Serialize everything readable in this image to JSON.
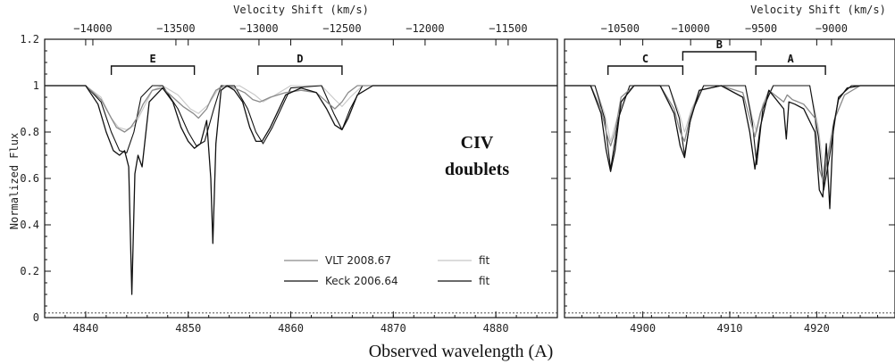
{
  "chart_data": {
    "type": "line",
    "description_text": {
      "top_axis_title": "Velocity Shift (km/s)",
      "y_axis_title": "Normalized Flux",
      "x_axis_title": "Observed wavelength (A)",
      "annotation": [
        "CIV",
        "doublets"
      ]
    },
    "panels": [
      {
        "xlim": [
          4836,
          4886
        ],
        "ylim": [
          0,
          1.2
        ],
        "x_ticks": [
          4840,
          4850,
          4860,
          4870,
          4880
        ],
        "y_ticks": [
          0,
          0.2,
          0.4,
          0.6,
          0.8,
          1,
          1.2
        ],
        "top_ticks": [
          -14000,
          -13500,
          -13000,
          -12500,
          -12000,
          -11500
        ],
        "top_tick_wavelengths": [
          4840.7,
          4848.8,
          4856.9,
          4865.0,
          4873.1,
          4881.2
        ],
        "components": [
          {
            "label": "E",
            "x_range": [
              4842.5,
              4850.6
            ]
          },
          {
            "label": "D",
            "x_range": [
              4856.8,
              4865.0
            ]
          }
        ],
        "series": [
          {
            "name": "VLT 2008.67",
            "color": "#8a8a8a",
            "x": [
              4836,
              4840,
              4841.5,
              4842.5,
              4843.0,
              4843.8,
              4844.4,
              4845.0,
              4845.6,
              4846.5,
              4847.5,
              4848.5,
              4849.5,
              4850.5,
              4851.0,
              4851.8,
              4852.2,
              4852.7,
              4853.5,
              4854.5,
              4855.5,
              4856.3,
              4857.0,
              4858.0,
              4859.5,
              4861.0,
              4862.5,
              4863.5,
              4864.3,
              4865.0,
              4865.6,
              4866.5,
              4868,
              4886
            ],
            "y": [
              1.0,
              1.0,
              0.94,
              0.86,
              0.82,
              0.8,
              0.82,
              0.86,
              0.92,
              0.98,
              0.99,
              0.95,
              0.91,
              0.88,
              0.86,
              0.9,
              0.94,
              0.98,
              1.0,
              0.99,
              0.97,
              0.94,
              0.93,
              0.95,
              0.97,
              0.98,
              0.97,
              0.93,
              0.9,
              0.93,
              0.97,
              1.0,
              1.0,
              1.0
            ]
          },
          {
            "name": "Keck 2006.64",
            "color": "#111111",
            "x": [
              4836,
              4840,
              4841.2,
              4842.0,
              4842.7,
              4843.3,
              4843.8,
              4844.2,
              4844.5,
              4844.8,
              4845.1,
              4845.5,
              4846.2,
              4847.5,
              4848.5,
              4849.3,
              4850.0,
              4850.6,
              4851.2,
              4851.8,
              4852.2,
              4852.4,
              4852.7,
              4853.2,
              4853.8,
              4854.5,
              4855.3,
              4856.0,
              4856.6,
              4857.2,
              4858.0,
              4859.5,
              4861.0,
              4862.5,
              4863.5,
              4864.3,
              4865.0,
              4865.6,
              4866.5,
              4868,
              4886
            ],
            "y": [
              1.0,
              1.0,
              0.92,
              0.8,
              0.72,
              0.7,
              0.72,
              0.65,
              0.1,
              0.62,
              0.7,
              0.65,
              0.93,
              0.99,
              0.93,
              0.82,
              0.76,
              0.73,
              0.75,
              0.85,
              0.6,
              0.32,
              0.75,
              0.98,
              1.0,
              0.98,
              0.93,
              0.82,
              0.76,
              0.76,
              0.82,
              0.96,
              0.99,
              0.97,
              0.9,
              0.83,
              0.81,
              0.86,
              0.96,
              1.0,
              1.0
            ]
          }
        ],
        "fits": [
          {
            "name": "fit",
            "color": "#c8c8c8",
            "x": [
              4836,
              4840,
              4841.5,
              4842.5,
              4843.2,
              4844.0,
              4844.8,
              4845.6,
              4846.5,
              4847.5,
              4849.0,
              4850.2,
              4851.0,
              4852.0,
              4853.0,
              4855.0,
              4856.5,
              4857.3,
              4858.5,
              4860,
              4863,
              4864.3,
              4865.0,
              4865.8,
              4867,
              4886
            ],
            "y": [
              1.0,
              1.0,
              0.95,
              0.86,
              0.82,
              0.81,
              0.83,
              0.9,
              0.98,
              1.0,
              0.96,
              0.9,
              0.88,
              0.92,
              0.99,
              1.0,
              0.96,
              0.93,
              0.96,
              1.0,
              1.0,
              0.94,
              0.91,
              0.95,
              1.0,
              1.0
            ]
          },
          {
            "name": "fit",
            "color": "#111111",
            "x": [
              4836,
              4840,
              4841.5,
              4842.5,
              4843.3,
              4844.0,
              4844.7,
              4845.4,
              4846.5,
              4847.5,
              4849.0,
              4850.0,
              4850.8,
              4851.6,
              4852.5,
              4853.2,
              4854.5,
              4855.8,
              4856.6,
              4857.3,
              4858.2,
              4860,
              4863,
              4864.2,
              4865.0,
              4865.8,
              4867,
              4886
            ],
            "y": [
              1.0,
              1.0,
              0.93,
              0.8,
              0.72,
              0.71,
              0.8,
              0.95,
              1.0,
              1.0,
              0.9,
              0.8,
              0.74,
              0.76,
              0.9,
              1.0,
              1.0,
              0.9,
              0.8,
              0.75,
              0.82,
              0.99,
              1.0,
              0.88,
              0.81,
              0.9,
              1.0,
              1.0
            ]
          }
        ]
      },
      {
        "xlim": [
          4891,
          4929
        ],
        "ylim": [
          0,
          1.2
        ],
        "x_ticks": [
          4900,
          4910,
          4920
        ],
        "y_ticks": [
          0,
          0.2,
          0.4,
          0.6,
          0.8,
          1,
          1.2
        ],
        "top_ticks": [
          -10500,
          -10000,
          -9500,
          -9000
        ],
        "top_tick_wavelengths": [
          4897.4,
          4905.5,
          4913.6,
          4921.7
        ],
        "components": [
          {
            "label": "C",
            "x_range": [
              4896.0,
              4904.6
            ]
          },
          {
            "label": "B",
            "x_range": [
              4904.6,
              4913.0
            ]
          },
          {
            "label": "A",
            "x_range": [
              4913.0,
              4921.0
            ]
          }
        ],
        "series": [
          {
            "name": "VLT 2008.67",
            "color": "#8a8a8a",
            "x": [
              4891,
              4894,
              4895.2,
              4895.8,
              4896.3,
              4896.8,
              4897.5,
              4899,
              4902,
              4903.6,
              4904.3,
              4904.8,
              4905.4,
              4906.5,
              4909,
              4911.5,
              4912.3,
              4912.9,
              4913.5,
              4914.5,
              4916.2,
              4916.6,
              4917.2,
              4918.5,
              4919.8,
              4920.3,
              4920.8,
              4921.3,
              4922.0,
              4923.2,
              4925,
              4929
            ],
            "y": [
              1.0,
              1.0,
              0.9,
              0.8,
              0.74,
              0.8,
              0.95,
              1.0,
              1.0,
              0.9,
              0.8,
              0.76,
              0.86,
              0.98,
              1.0,
              0.97,
              0.86,
              0.78,
              0.88,
              0.98,
              0.93,
              0.96,
              0.94,
              0.92,
              0.86,
              0.64,
              0.58,
              0.7,
              0.85,
              0.96,
              1.0,
              1.0
            ]
          },
          {
            "name": "Keck 2006.64",
            "color": "#111111",
            "x": [
              4891,
              4894,
              4895.2,
              4895.8,
              4896.3,
              4896.8,
              4897.5,
              4899,
              4902,
              4903.6,
              4904.3,
              4904.8,
              4905.4,
              4906.5,
              4909,
              4911.5,
              4912.3,
              4912.9,
              4913.5,
              4914.5,
              4916.2,
              4916.5,
              4916.8,
              4917.5,
              4918.5,
              4919.8,
              4920.3,
              4920.7,
              4921.1,
              4921.5,
              4921.9,
              4922.5,
              4923.5,
              4925,
              4929
            ],
            "y": [
              1.0,
              1.0,
              0.88,
              0.72,
              0.63,
              0.72,
              0.93,
              1.0,
              1.0,
              0.88,
              0.74,
              0.69,
              0.84,
              0.98,
              1.0,
              0.95,
              0.8,
              0.64,
              0.82,
              0.98,
              0.9,
              0.77,
              0.93,
              0.92,
              0.9,
              0.8,
              0.55,
              0.52,
              0.75,
              0.47,
              0.82,
              0.94,
              0.99,
              1.0,
              1.0
            ]
          }
        ],
        "fits": [
          {
            "name": "fit",
            "color": "#c8c8c8",
            "x": [
              4891,
              4894.5,
              4895.6,
              4896.3,
              4897.2,
              4898.5,
              4903.0,
              4904.2,
              4904.8,
              4905.6,
              4907,
              4911.8,
              4912.6,
              4913.1,
              4913.8,
              4915,
              4919.2,
              4920.2,
              4920.8,
              4921.5,
              4922.5,
              4924,
              4929
            ],
            "y": [
              1.0,
              1.0,
              0.88,
              0.76,
              0.88,
              1.0,
              1.0,
              0.88,
              0.8,
              0.9,
              1.0,
              1.0,
              0.86,
              0.8,
              0.92,
              1.0,
              1.0,
              0.82,
              0.62,
              0.72,
              0.95,
              1.0,
              1.0
            ]
          },
          {
            "name": "fit",
            "color": "#111111",
            "x": [
              4891,
              4894.5,
              4895.6,
              4896.3,
              4897.2,
              4898.5,
              4903.0,
              4904.2,
              4904.8,
              4905.6,
              4907,
              4911.8,
              4912.6,
              4913.1,
              4913.8,
              4915,
              4919.2,
              4920.2,
              4920.8,
              4921.5,
              4922.5,
              4924,
              4929
            ],
            "y": [
              1.0,
              1.0,
              0.86,
              0.64,
              0.86,
              1.0,
              1.0,
              0.86,
              0.7,
              0.88,
              1.0,
              1.0,
              0.84,
              0.66,
              0.9,
              1.0,
              1.0,
              0.78,
              0.55,
              0.7,
              0.95,
              1.0,
              1.0
            ]
          }
        ]
      }
    ],
    "legend": [
      {
        "label": "VLT 2008.67",
        "color": "#8a8a8a"
      },
      {
        "label": "fit",
        "color": "#c8c8c8"
      },
      {
        "label": "Keck 2006.64",
        "color": "#111111"
      },
      {
        "label": "fit",
        "color": "#111111"
      }
    ]
  }
}
